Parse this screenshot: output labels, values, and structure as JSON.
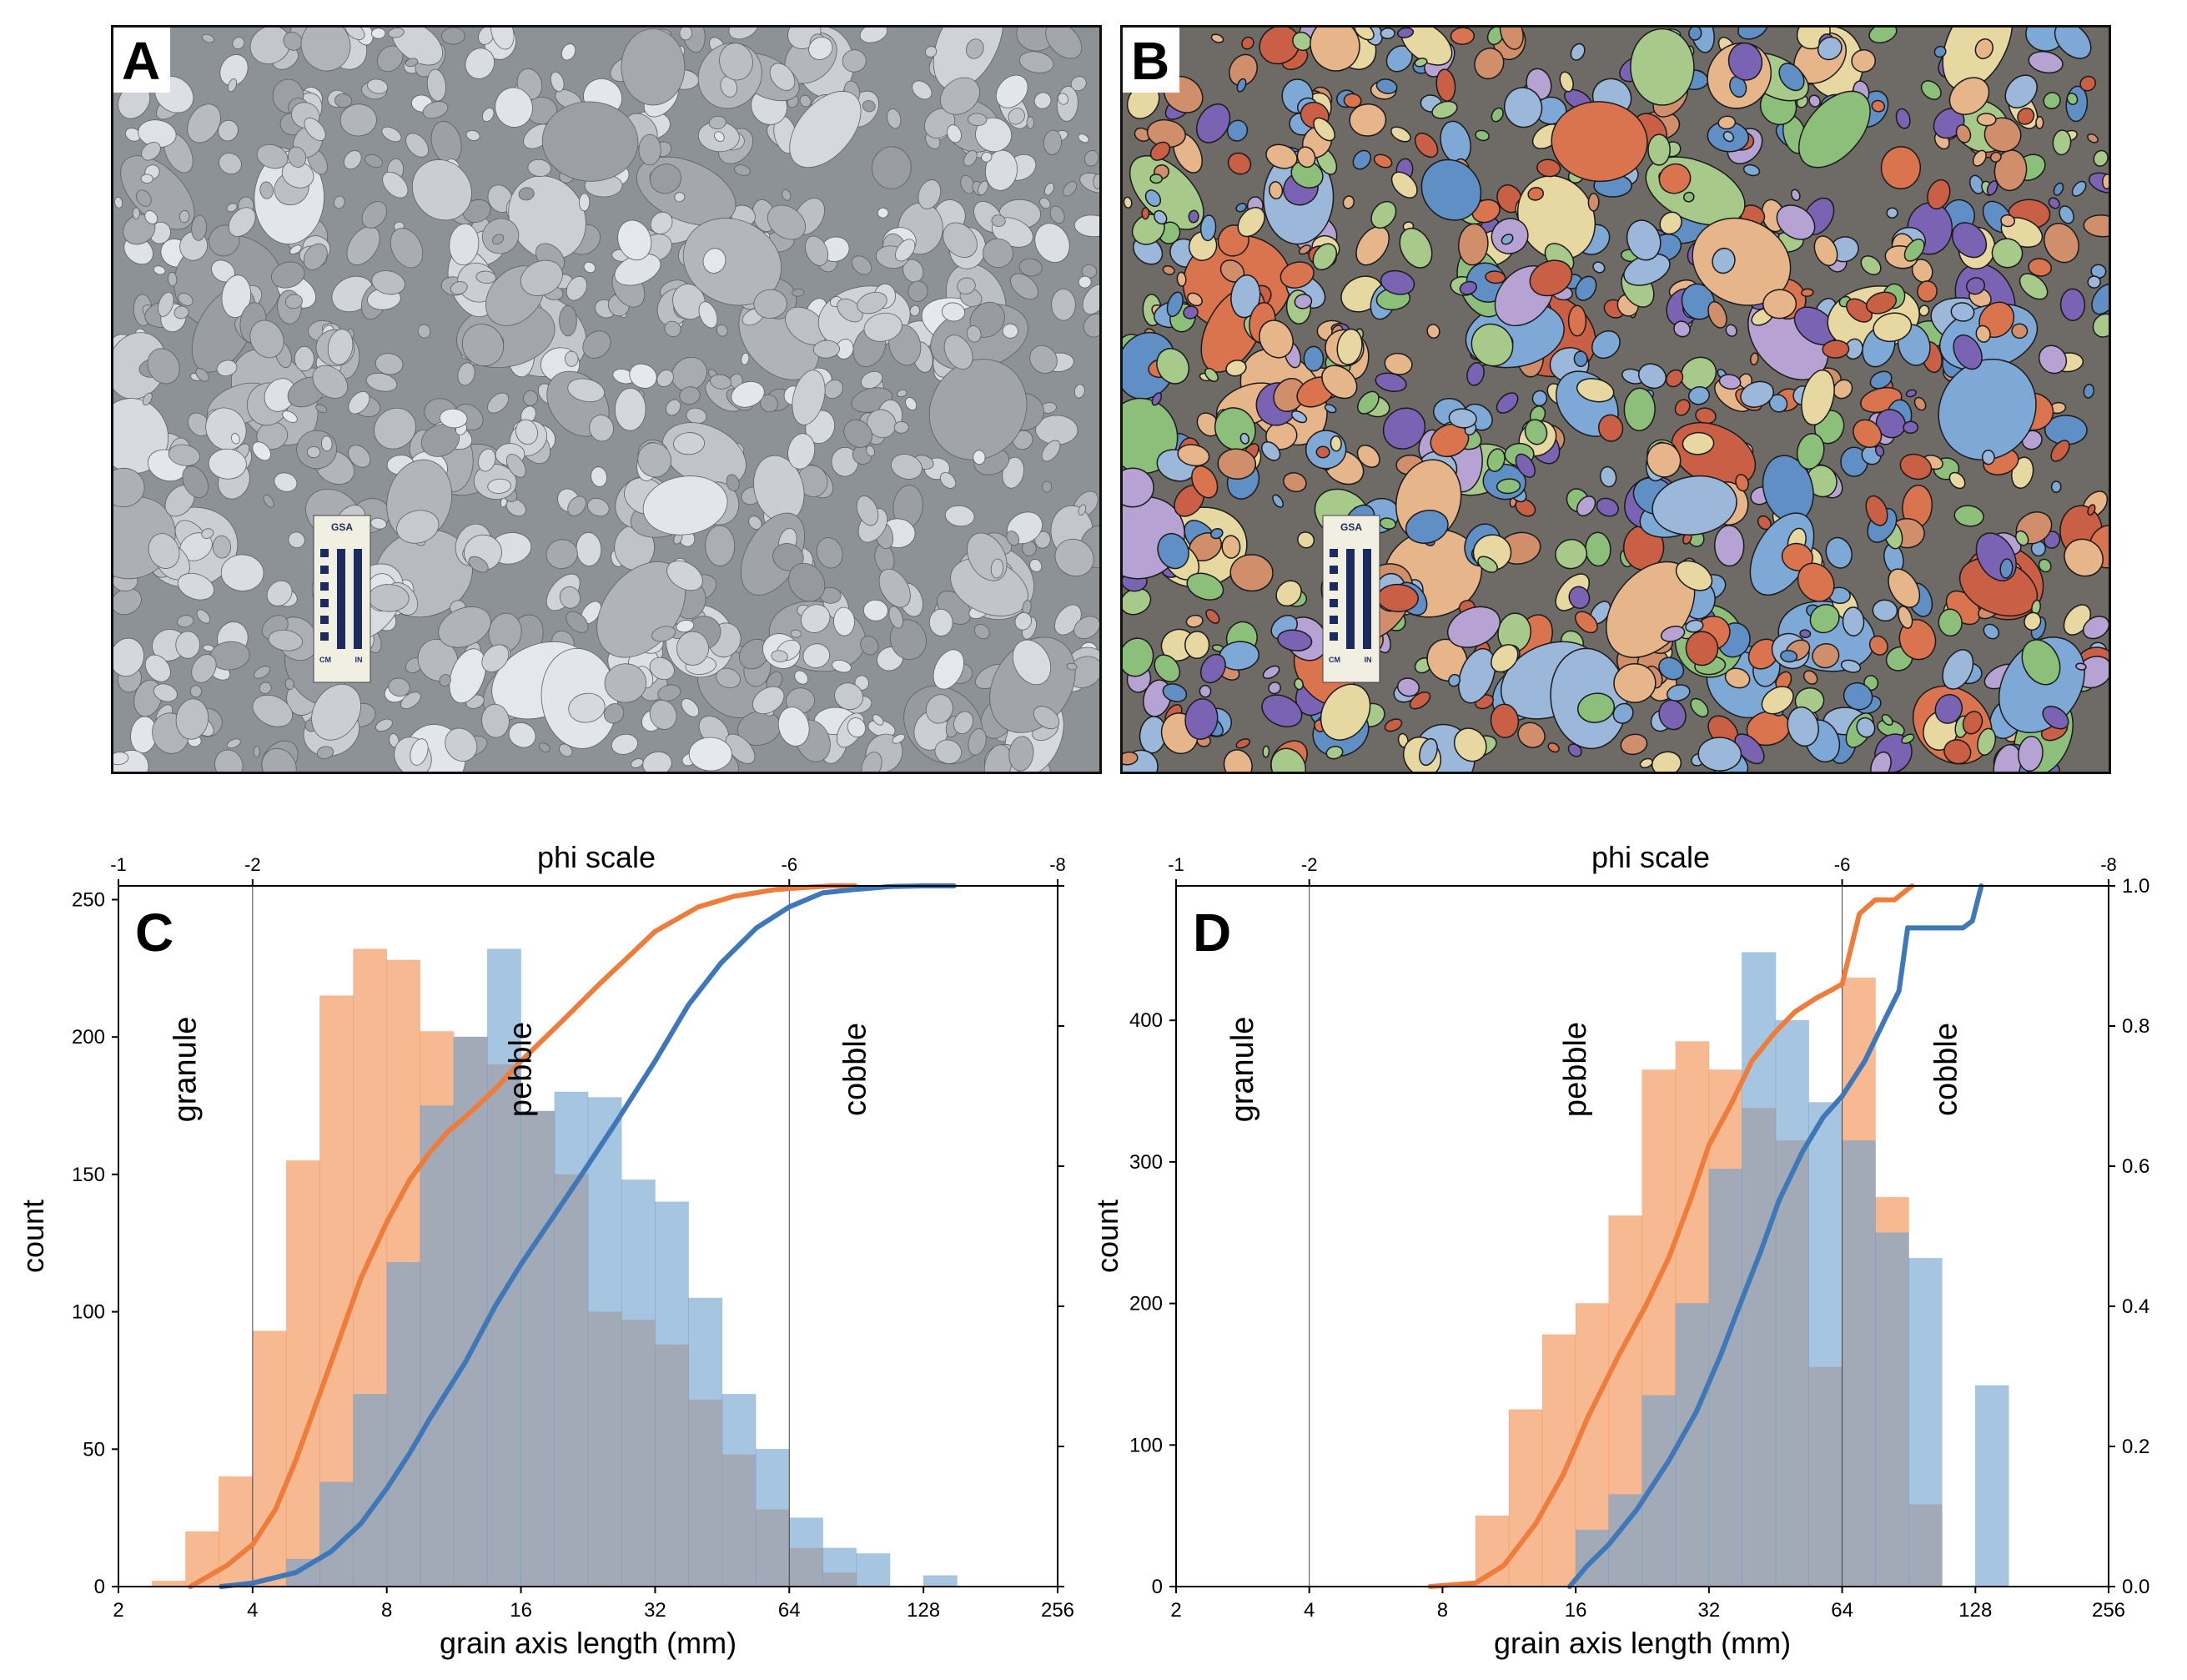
{
  "panels": {
    "a": {
      "label": "A",
      "card_title": "GSA",
      "card_cm": "CM",
      "card_in": "IN"
    },
    "b": {
      "label": "B",
      "card_title": "GSA",
      "card_cm": "CM",
      "card_in": "IN"
    }
  },
  "colors": {
    "orange": "#F28E4E",
    "blue": "#6FA1CF",
    "orange_line": "#EE7C3A",
    "blue_line": "#3E78B9",
    "photo_bg": "#8d9297"
  },
  "chart_data": [
    {
      "type": "bar",
      "panel": "C",
      "title": "",
      "xlabel": "grain axis length (mm)",
      "ylabel": "count",
      "top_axis_label": "phi scale",
      "x_scale": "log2",
      "xlim": [
        2,
        256
      ],
      "ylim": [
        0,
        255
      ],
      "x_ticks": [
        2,
        4,
        8,
        16,
        32,
        64,
        128,
        256
      ],
      "x_tick_labels": [
        "2",
        "4",
        "8",
        "16",
        "32",
        "64",
        "128",
        "256"
      ],
      "y_ticks": [
        0,
        50,
        100,
        150,
        200,
        250
      ],
      "y_tick_labels": [
        "0",
        "50",
        "100",
        "150",
        "200",
        "250"
      ],
      "phi_ticks": [
        2,
        4,
        64,
        256
      ],
      "phi_tick_labels": [
        "-1",
        "-2",
        "-6",
        "-8"
      ],
      "class_lines": [
        4,
        64
      ],
      "zones": [
        {
          "label": "granule",
          "x": 2.83
        },
        {
          "label": "pebble",
          "x": 16
        },
        {
          "label": "cobble",
          "x": 90
        }
      ],
      "bin_edges": [
        2.38,
        2.83,
        3.36,
        4,
        4.76,
        5.66,
        6.73,
        8,
        9.51,
        11.31,
        13.45,
        16,
        19.03,
        22.63,
        26.91,
        32,
        38.05,
        45.25,
        53.82,
        64,
        76.11,
        90.51,
        107.63,
        128,
        152.22
      ],
      "series": [
        {
          "color": "orange",
          "values": [
            2,
            20,
            40,
            93,
            155,
            215,
            232,
            228,
            202,
            200,
            190,
            173,
            150,
            100,
            97,
            88,
            68,
            48,
            28,
            14,
            5,
            0,
            0,
            0
          ]
        },
        {
          "color": "blue",
          "values": [
            0,
            0,
            0,
            0,
            10,
            38,
            70,
            118,
            175,
            200,
            232,
            173,
            180,
            178,
            148,
            140,
            105,
            70,
            50,
            25,
            14,
            12,
            0,
            4
          ]
        }
      ],
      "cdf": [
        {
          "color": "orange",
          "x": [
            2.9,
            3.5,
            4,
            4.5,
            5,
            6,
            7,
            8,
            9,
            10,
            11,
            12,
            14,
            16,
            20,
            24,
            28,
            32,
            40,
            48,
            60,
            70,
            80,
            90
          ],
          "y": [
            0,
            0.03,
            0.06,
            0.11,
            0.18,
            0.32,
            0.44,
            0.52,
            0.58,
            0.62,
            0.65,
            0.67,
            0.71,
            0.75,
            0.81,
            0.86,
            0.9,
            0.935,
            0.97,
            0.985,
            0.995,
            0.998,
            1.0,
            1.0
          ]
        },
        {
          "color": "blue",
          "x": [
            3.4,
            4,
            5,
            6,
            7,
            8,
            9,
            10,
            12,
            14,
            16,
            19,
            22,
            26,
            32,
            38,
            45,
            54,
            64,
            76,
            90,
            108,
            128,
            150
          ],
          "y": [
            0,
            0.005,
            0.02,
            0.05,
            0.09,
            0.14,
            0.19,
            0.24,
            0.32,
            0.4,
            0.46,
            0.53,
            0.59,
            0.66,
            0.75,
            0.83,
            0.89,
            0.94,
            0.97,
            0.99,
            0.995,
            0.999,
            1.0,
            1.0
          ]
        }
      ]
    },
    {
      "type": "bar",
      "panel": "D",
      "title": "",
      "xlabel": "grain axis length (mm)",
      "ylabel": "count",
      "top_axis_label": "phi scale",
      "x_scale": "log2",
      "xlim": [
        2,
        256
      ],
      "ylim": [
        0,
        495
      ],
      "y2lim": [
        0,
        1.0
      ],
      "x_ticks": [
        2,
        4,
        8,
        16,
        32,
        64,
        128,
        256
      ],
      "x_tick_labels": [
        "2",
        "4",
        "8",
        "16",
        "32",
        "64",
        "128",
        "256"
      ],
      "y_ticks": [
        0,
        100,
        200,
        300,
        400
      ],
      "y_tick_labels": [
        "0",
        "100",
        "200",
        "300",
        "400"
      ],
      "y2_ticks": [
        0,
        0.2,
        0.4,
        0.6,
        0.8,
        1.0
      ],
      "y2_tick_labels": [
        "0.0",
        "0.2",
        "0.4",
        "0.6",
        "0.8",
        "1.0"
      ],
      "phi_ticks": [
        2,
        4,
        64,
        256
      ],
      "phi_tick_labels": [
        "-1",
        "-2",
        "-6",
        "-8"
      ],
      "class_lines": [
        4,
        64
      ],
      "zones": [
        {
          "label": "granule",
          "x": 2.83
        },
        {
          "label": "pebble",
          "x": 16
        },
        {
          "label": "cobble",
          "x": 110
        }
      ],
      "bin_edges": [
        9.5,
        11.3,
        13.45,
        16,
        19,
        22.6,
        26.9,
        32,
        38,
        45.3,
        53.8,
        64,
        76.1,
        90.5,
        107.6,
        128,
        152.2
      ],
      "series": [
        {
          "color": "orange",
          "values": [
            50,
            125,
            178,
            200,
            262,
            365,
            385,
            365,
            338,
            315,
            155,
            430,
            275,
            58,
            0,
            0
          ]
        },
        {
          "color": "blue",
          "values": [
            0,
            0,
            0,
            40,
            65,
            135,
            200,
            295,
            448,
            400,
            342,
            315,
            250,
            232,
            0,
            142
          ]
        }
      ],
      "cdf": [
        {
          "color": "orange",
          "x": [
            7.5,
            9.5,
            11,
            13,
            15,
            17,
            20,
            23,
            26,
            29,
            32,
            36,
            40,
            45,
            50,
            56,
            60,
            64,
            70,
            76,
            84,
            92
          ],
          "y": [
            0,
            0.005,
            0.03,
            0.09,
            0.16,
            0.24,
            0.33,
            0.4,
            0.47,
            0.55,
            0.63,
            0.69,
            0.75,
            0.79,
            0.82,
            0.84,
            0.85,
            0.86,
            0.96,
            0.98,
            0.98,
            1.0
          ]
        },
        {
          "color": "blue",
          "x": [
            15.5,
            17,
            19,
            22,
            26,
            30,
            34,
            38,
            42,
            46,
            52,
            58,
            64,
            72,
            80,
            86,
            90,
            100,
            110,
            120,
            126,
            132
          ],
          "y": [
            0,
            0.03,
            0.06,
            0.11,
            0.18,
            0.25,
            0.33,
            0.41,
            0.48,
            0.55,
            0.62,
            0.67,
            0.7,
            0.75,
            0.81,
            0.85,
            0.94,
            0.94,
            0.94,
            0.94,
            0.95,
            1.0
          ]
        }
      ]
    }
  ]
}
